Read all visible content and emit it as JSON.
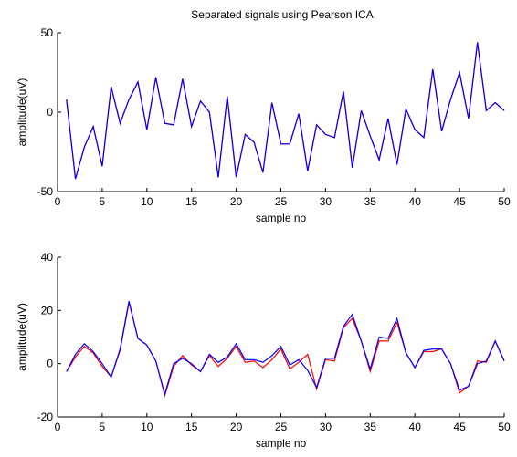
{
  "title": "Separated signals using Pearson ICA",
  "colors": {
    "series1": "#ff0000",
    "series2": "#0000ff",
    "axis": "#000000"
  },
  "chart_data": [
    {
      "type": "line",
      "title": "Separated signals using Pearson ICA",
      "xlabel": "sample no",
      "ylabel": "amplitude(uV)",
      "xlim": [
        0,
        50
      ],
      "ylim": [
        -50,
        50
      ],
      "xticks": [
        0,
        5,
        10,
        15,
        20,
        25,
        30,
        35,
        40,
        45,
        50
      ],
      "yticks": [
        -50,
        0,
        50
      ],
      "grid": false,
      "x": [
        1,
        2,
        3,
        4,
        5,
        6,
        7,
        8,
        9,
        10,
        11,
        12,
        13,
        14,
        15,
        16,
        17,
        18,
        19,
        20,
        21,
        22,
        23,
        24,
        25,
        26,
        27,
        28,
        29,
        30,
        31,
        32,
        33,
        34,
        35,
        36,
        37,
        38,
        39,
        40,
        41,
        42,
        43,
        44,
        45,
        46,
        47,
        48,
        49,
        50
      ],
      "series": [
        {
          "color": "#ff0000",
          "values": [
            8,
            -42,
            -22,
            -9,
            -34,
            16,
            -7,
            8,
            19,
            -11,
            22,
            -7,
            -8,
            21,
            -9,
            7,
            0,
            -41,
            10,
            -41,
            -14,
            -19,
            -38,
            6,
            -20,
            -20,
            -1,
            -37,
            -8,
            -14,
            -16,
            13,
            -35,
            1,
            -15,
            -30,
            -4,
            -33,
            2,
            -11,
            -16,
            27,
            -12,
            8,
            25,
            -4,
            44,
            1,
            6,
            1
          ]
        },
        {
          "color": "#0000ff",
          "values": [
            8,
            -42,
            -22,
            -9,
            -34,
            16,
            -7,
            8,
            19,
            -11,
            22,
            -7,
            -8,
            21,
            -9,
            7,
            0,
            -41,
            10,
            -41,
            -14,
            -19,
            -38,
            6,
            -20,
            -20,
            -1,
            -37,
            -8,
            -14,
            -16,
            13,
            -35,
            1,
            -15,
            -30,
            -4,
            -33,
            2,
            -11,
            -16,
            27,
            -12,
            8,
            25,
            -4,
            44,
            1,
            6,
            1
          ]
        }
      ]
    },
    {
      "type": "line",
      "title": "",
      "xlabel": "sample no",
      "ylabel": "amplitude(uV)",
      "xlim": [
        0,
        50
      ],
      "ylim": [
        -20,
        40
      ],
      "xticks": [
        0,
        5,
        10,
        15,
        20,
        25,
        30,
        35,
        40,
        45,
        50
      ],
      "yticks": [
        -20,
        0,
        20,
        40
      ],
      "grid": false,
      "x": [
        1,
        2,
        3,
        4,
        5,
        6,
        7,
        8,
        9,
        10,
        11,
        12,
        13,
        14,
        15,
        16,
        17,
        18,
        19,
        20,
        21,
        22,
        23,
        24,
        25,
        26,
        27,
        28,
        29,
        30,
        31,
        32,
        33,
        34,
        35,
        36,
        37,
        38,
        39,
        40,
        41,
        42,
        43,
        44,
        45,
        46,
        47,
        48,
        49,
        50
      ],
      "series": [
        {
          "color": "#ff0000",
          "values": [
            -3,
            2.5,
            6.5,
            4,
            -1,
            -5,
            5,
            23,
            9.5,
            7,
            1,
            -12,
            -1,
            3,
            -0.5,
            -3,
            3,
            -1,
            2,
            6.5,
            0.5,
            1,
            -1.5,
            1.5,
            5.5,
            -2,
            0.5,
            3.5,
            -9.5,
            1.5,
            1,
            13.5,
            17,
            8.5,
            -3,
            8.5,
            8.5,
            15.5,
            4,
            -1.5,
            4.5,
            4.5,
            5.5,
            0,
            -11,
            -8.5,
            1,
            0.5,
            8.5,
            1
          ]
        },
        {
          "color": "#0000ff",
          "values": [
            -3,
            3.5,
            7.5,
            4.5,
            0,
            -5,
            5.5,
            23.5,
            9.5,
            7,
            1,
            -11.5,
            0,
            2,
            0,
            -3,
            3.5,
            0.5,
            2.5,
            7.5,
            1.5,
            1.5,
            0.5,
            3,
            6.5,
            -0.5,
            1.5,
            -2.5,
            -9,
            2,
            2,
            14,
            18.5,
            8.5,
            -2,
            10,
            9.5,
            17,
            4,
            -1.5,
            5,
            5.5,
            5.5,
            0,
            -10,
            -8.5,
            0,
            1,
            8.5,
            1
          ]
        }
      ]
    }
  ]
}
